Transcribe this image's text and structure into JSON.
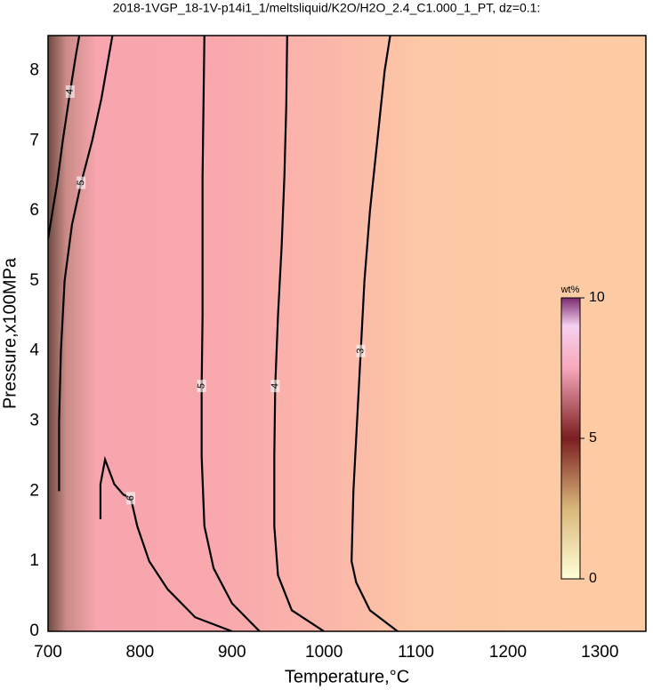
{
  "chart_data": {
    "type": "contour",
    "title": "2018-1VGP_18-1V-p14i1_1/meltsliquid/K2O/H2O_2.4_C1.000_1_PT, dz=0.1:",
    "x_label": "Temperature,°C",
    "y_label": "Pressure,x100MPa",
    "xlim": [
      700,
      1350
    ],
    "ylim": [
      0,
      8.5
    ],
    "xticks": [
      700,
      800,
      900,
      1000,
      1100,
      1200,
      1300
    ],
    "yticks": [
      0,
      1,
      2,
      3,
      4,
      5,
      6,
      7,
      8
    ],
    "grid": true,
    "contours": [
      {
        "level": 3,
        "x": [
          1080,
          1050,
          1035,
          1030,
          1032,
          1036,
          1040,
          1044,
          1047,
          1050,
          1058,
          1066,
          1072
        ],
        "y": [
          0,
          0.3,
          0.7,
          1,
          2,
          3,
          4,
          5,
          5.5,
          6,
          7,
          8,
          8.5
        ]
      },
      {
        "level": 4,
        "x": [
          1000,
          965,
          950,
          946,
          946,
          947,
          950,
          954,
          957,
          959,
          960
        ],
        "y": [
          0,
          0.3,
          0.8,
          1.5,
          2.5,
          3.5,
          4.5,
          5.5,
          6.5,
          7.5,
          8.5
        ]
      },
      {
        "level": 5,
        "x": [
          930,
          900,
          880,
          870,
          867,
          867,
          868,
          868,
          868,
          869,
          870
        ],
        "y": [
          0,
          0.4,
          0.9,
          1.5,
          2.5,
          3.5,
          4.5,
          5.5,
          6.5,
          7.5,
          8.5
        ]
      },
      {
        "level": 6,
        "x": [
          900,
          860,
          830,
          810,
          797,
          790,
          782,
          772,
          762,
          757,
          757
        ],
        "y": [
          0,
          0.2,
          0.6,
          1.0,
          1.5,
          1.9,
          1.95,
          2.1,
          2.45,
          2.1,
          1.6
        ]
      },
      {
        "level": 5,
        "x": [
          712,
          712,
          714,
          718,
          726,
          736,
          748,
          758,
          766,
          770
        ],
        "y": [
          2.0,
          3.0,
          4.0,
          5.0,
          5.8,
          6.4,
          7.0,
          7.6,
          8.2,
          8.5
        ]
      },
      {
        "level": 4,
        "x": [
          700,
          710,
          716,
          724,
          730,
          734
        ],
        "y": [
          5.6,
          6.4,
          7.0,
          7.7,
          8.2,
          8.5
        ]
      }
    ],
    "colorbar": {
      "label": "wt%",
      "clim": [
        0,
        10
      ],
      "ticks": [
        0,
        5,
        10
      ]
    }
  }
}
